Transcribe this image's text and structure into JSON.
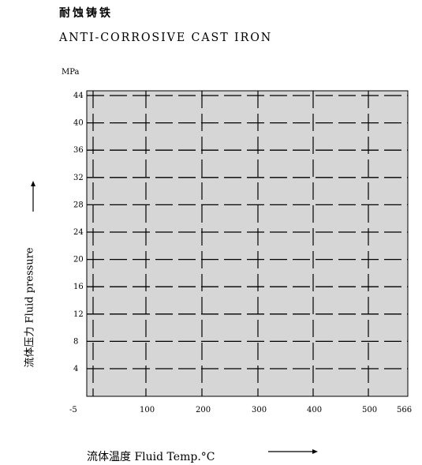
{
  "title_cn": "耐蚀铸铁",
  "title_en": "ANTI-CORROSIVE CAST IRON",
  "chart_data": {
    "type": "line",
    "title": "ANTI-CORROSIVE CAST IRON",
    "y_unit": "MPa",
    "ylabel": "流体压力 Fluid pressure",
    "xlabel": "流体温度 Fluid Temp.°C",
    "x_ticks": [
      "-5",
      "100",
      "200",
      "300",
      "400",
      "500",
      "566"
    ],
    "y_ticks": [
      "4",
      "8",
      "12",
      "16",
      "20",
      "24",
      "28",
      "32",
      "36",
      "40",
      "44"
    ],
    "xlim": [
      -5,
      566
    ],
    "ylim": [
      0,
      44
    ],
    "grid": true,
    "series": []
  }
}
